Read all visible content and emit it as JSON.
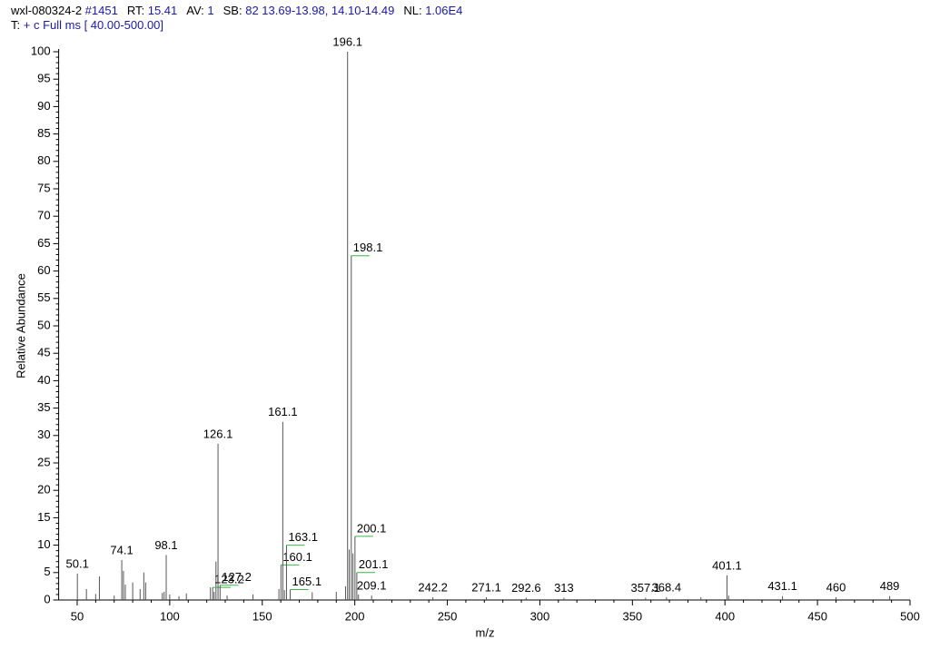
{
  "header": {
    "line1": [
      {
        "label": "wxl-080324-2",
        "value": "#1451"
      },
      {
        "label": "RT:",
        "value": "15.41"
      },
      {
        "label": "AV:",
        "value": "1"
      },
      {
        "label": "SB:",
        "value": "82  13.69-13.98, 14.10-14.49"
      },
      {
        "label": "NL:",
        "value": "1.06E4"
      }
    ],
    "line2": {
      "label": "T:",
      "value": "+ c Full ms [ 40.00-500.00]"
    }
  },
  "chart_data": {
    "type": "stem",
    "y_label": "Relative Abundance",
    "x_label": "m/z",
    "color": "#555555",
    "xlim": [
      40,
      500
    ],
    "ylim": [
      0,
      100
    ],
    "xticks": [
      50,
      100,
      150,
      200,
      250,
      300,
      350,
      400,
      450,
      500
    ],
    "yticks": [
      0,
      5,
      10,
      15,
      20,
      25,
      30,
      35,
      40,
      45,
      50,
      55,
      60,
      65,
      70,
      75,
      80,
      85,
      90,
      95,
      100
    ],
    "x": [
      50.1,
      74.1,
      98.1,
      123.2,
      126.1,
      127.2,
      160.1,
      161.1,
      163.1,
      165.1,
      196.1,
      198.1,
      200.1,
      201.1,
      209.1,
      242.2,
      271.1,
      292.6,
      313.0,
      357.1,
      368.4,
      401.1,
      431.1,
      460.0,
      489.0
    ],
    "values": [
      4.8,
      7.3,
      8.2,
      2.3,
      28.5,
      2.7,
      6.4,
      32.5,
      10.0,
      1.9,
      100,
      62.8,
      11.6,
      5.0,
      0.8,
      0.5,
      0.5,
      0.4,
      0.4,
      0.4,
      0.5,
      4.5,
      0.7,
      0.5,
      0.7
    ],
    "minor_x": [
      55,
      60,
      62,
      70,
      75,
      76,
      80,
      84,
      86,
      87,
      96,
      97,
      100,
      105,
      109,
      122,
      124,
      125,
      131,
      145,
      159,
      162,
      177,
      190,
      195,
      197,
      199,
      202,
      387,
      402
    ],
    "minor_values": [
      2.0,
      1.1,
      4.3,
      0.8,
      5.3,
      2.8,
      3.2,
      2.0,
      5.0,
      3.2,
      1.3,
      1.5,
      1.0,
      0.7,
      1.2,
      2.3,
      1.5,
      7.0,
      0.8,
      1.0,
      2.0,
      1.8,
      1.4,
      1.5,
      2.5,
      9.2,
      8.5,
      1.0,
      0.5,
      0.8
    ]
  }
}
